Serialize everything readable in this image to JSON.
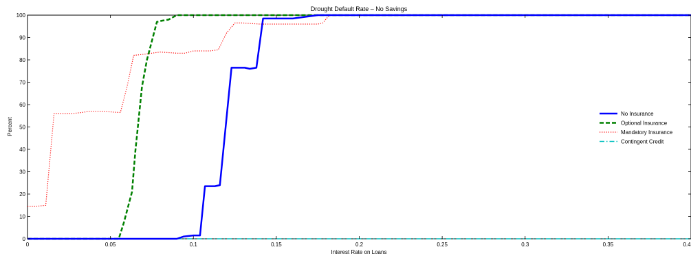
{
  "chart_data": {
    "type": "line",
    "title": "Drought Default Rate – No Savings",
    "xlabel": "Interest Rate on Loans",
    "ylabel": "Percent",
    "xlim": [
      0,
      0.4
    ],
    "ylim": [
      0,
      100
    ],
    "x_ticks": [
      0,
      0.05,
      0.1,
      0.15,
      0.2,
      0.25,
      0.3,
      0.35,
      0.4
    ],
    "x_tick_labels": [
      "0",
      "0.05",
      "0.1",
      "0.15",
      "0.2",
      "0.25",
      "0.3",
      "0.35",
      "0.4"
    ],
    "y_ticks": [
      0,
      10,
      20,
      30,
      40,
      50,
      60,
      70,
      80,
      90,
      100
    ],
    "y_tick_labels": [
      "0",
      "10",
      "20",
      "30",
      "40",
      "50",
      "60",
      "70",
      "80",
      "90",
      "100"
    ],
    "grid": false,
    "legend_position": "right",
    "series": [
      {
        "name": "No Insurance",
        "color": "#0000ff",
        "style": "solid",
        "x": [
          0,
          0.09,
          0.094,
          0.1,
          0.104,
          0.107,
          0.11,
          0.113,
          0.116,
          0.123,
          0.126,
          0.131,
          0.134,
          0.138,
          0.142,
          0.145,
          0.15,
          0.155,
          0.16,
          0.165,
          0.17,
          0.175,
          0.18,
          0.4
        ],
        "y": [
          0,
          0,
          1,
          1.5,
          1.5,
          23.5,
          23.5,
          23.5,
          24,
          76.5,
          76.5,
          76.5,
          76,
          76.5,
          98.5,
          98.5,
          98.5,
          98.5,
          98.5,
          99,
          99.5,
          100,
          100,
          100
        ]
      },
      {
        "name": "Optional Insurance",
        "color": "#008000",
        "style": "dashed",
        "x": [
          0,
          0.055,
          0.058,
          0.063,
          0.065,
          0.069,
          0.072,
          0.078,
          0.081,
          0.085,
          0.09,
          0.095,
          0.4
        ],
        "y": [
          0,
          0,
          7,
          21,
          39,
          68,
          80,
          97,
          97.5,
          98,
          100,
          100,
          100
        ]
      },
      {
        "name": "Mandatory Insurance",
        "color": "#ff0000",
        "style": "dotted",
        "x": [
          0,
          0.005,
          0.011,
          0.016,
          0.022,
          0.027,
          0.033,
          0.037,
          0.045,
          0.055,
          0.056,
          0.06,
          0.064,
          0.07,
          0.075,
          0.08,
          0.09,
          0.095,
          0.1,
          0.105,
          0.11,
          0.115,
          0.12,
          0.125,
          0.13,
          0.14,
          0.15,
          0.16,
          0.165,
          0.17,
          0.175,
          0.178,
          0.182,
          0.4
        ],
        "y": [
          14.5,
          14.5,
          15,
          56,
          56,
          56,
          56.5,
          57,
          57,
          56.5,
          56.5,
          68,
          82,
          82.5,
          83,
          83.5,
          83,
          83,
          84,
          84,
          84,
          84.5,
          92,
          96.5,
          96.5,
          96,
          96,
          96,
          96,
          96,
          96,
          96.5,
          100,
          100
        ]
      },
      {
        "name": "Contingent Credit",
        "color": "#00bfbf",
        "style": "dashdot",
        "x": [
          0,
          0.4
        ],
        "y": [
          0,
          0
        ]
      }
    ]
  }
}
